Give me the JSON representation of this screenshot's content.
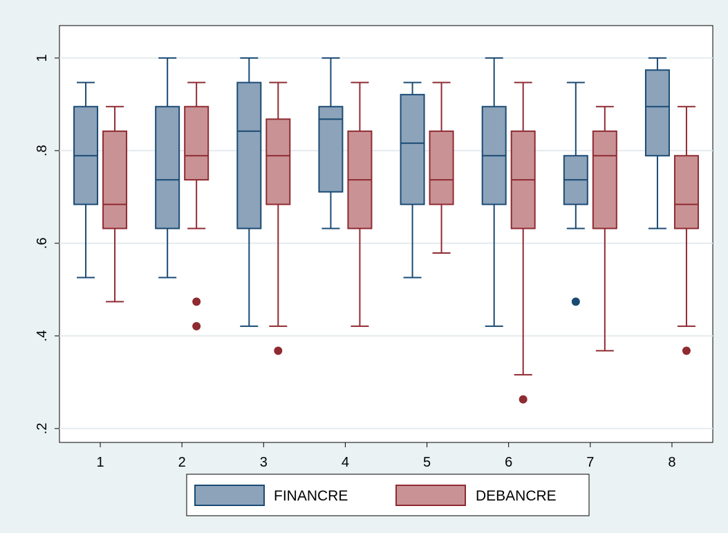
{
  "chart_data": {
    "type": "boxplot",
    "title": "",
    "xlabel": "",
    "ylabel": "",
    "categories": [
      "1",
      "2",
      "3",
      "4",
      "5",
      "6",
      "7",
      "8"
    ],
    "ylim": [
      0.17,
      1.07
    ],
    "yticks": [
      0.2,
      0.4,
      0.6,
      0.8,
      1.0
    ],
    "ytick_labels": [
      ".2",
      ".4",
      ".6",
      ".8",
      "1"
    ],
    "grid": true,
    "legend_position": "bottom",
    "series": [
      {
        "name": "FINANCRE",
        "color": "#8ca3ba",
        "edge_color": "#1a4a74",
        "boxes": [
          {
            "min": 0.526,
            "q1": 0.684,
            "median": 0.789,
            "q3": 0.895,
            "max": 0.947,
            "outliers": []
          },
          {
            "min": 0.526,
            "q1": 0.632,
            "median": 0.737,
            "q3": 0.895,
            "max": 1.0,
            "outliers": []
          },
          {
            "min": 0.421,
            "q1": 0.632,
            "median": 0.842,
            "q3": 0.947,
            "max": 1.0,
            "outliers": []
          },
          {
            "min": 0.632,
            "q1": 0.711,
            "median": 0.868,
            "q3": 0.895,
            "max": 1.0,
            "outliers": []
          },
          {
            "min": 0.526,
            "q1": 0.684,
            "median": 0.816,
            "q3": 0.921,
            "max": 0.947,
            "outliers": []
          },
          {
            "min": 0.421,
            "q1": 0.684,
            "median": 0.789,
            "q3": 0.895,
            "max": 1.0,
            "outliers": []
          },
          {
            "min": 0.632,
            "q1": 0.684,
            "median": 0.737,
            "q3": 0.789,
            "max": 0.947,
            "outliers": [
              0.474
            ]
          },
          {
            "min": 0.632,
            "q1": 0.789,
            "median": 0.895,
            "q3": 0.974,
            "max": 1.0,
            "outliers": []
          }
        ]
      },
      {
        "name": "DEBANCRE",
        "color": "#c99396",
        "edge_color": "#8f2a31",
        "boxes": [
          {
            "min": 0.474,
            "q1": 0.632,
            "median": 0.684,
            "q3": 0.842,
            "max": 0.895,
            "outliers": []
          },
          {
            "min": 0.632,
            "q1": 0.737,
            "median": 0.789,
            "q3": 0.895,
            "max": 0.947,
            "outliers": [
              0.474,
              0.421
            ]
          },
          {
            "min": 0.421,
            "q1": 0.684,
            "median": 0.789,
            "q3": 0.868,
            "max": 0.947,
            "outliers": [
              0.368
            ]
          },
          {
            "min": 0.421,
            "q1": 0.632,
            "median": 0.737,
            "q3": 0.842,
            "max": 0.947,
            "outliers": []
          },
          {
            "min": 0.579,
            "q1": 0.684,
            "median": 0.737,
            "q3": 0.842,
            "max": 0.947,
            "outliers": []
          },
          {
            "min": 0.316,
            "q1": 0.632,
            "median": 0.737,
            "q3": 0.842,
            "max": 0.947,
            "outliers": [
              0.263
            ]
          },
          {
            "min": 0.368,
            "q1": 0.632,
            "median": 0.789,
            "q3": 0.842,
            "max": 0.895,
            "outliers": []
          },
          {
            "min": 0.421,
            "q1": 0.632,
            "median": 0.684,
            "q3": 0.789,
            "max": 0.895,
            "outliers": [
              0.368
            ]
          }
        ]
      }
    ]
  }
}
